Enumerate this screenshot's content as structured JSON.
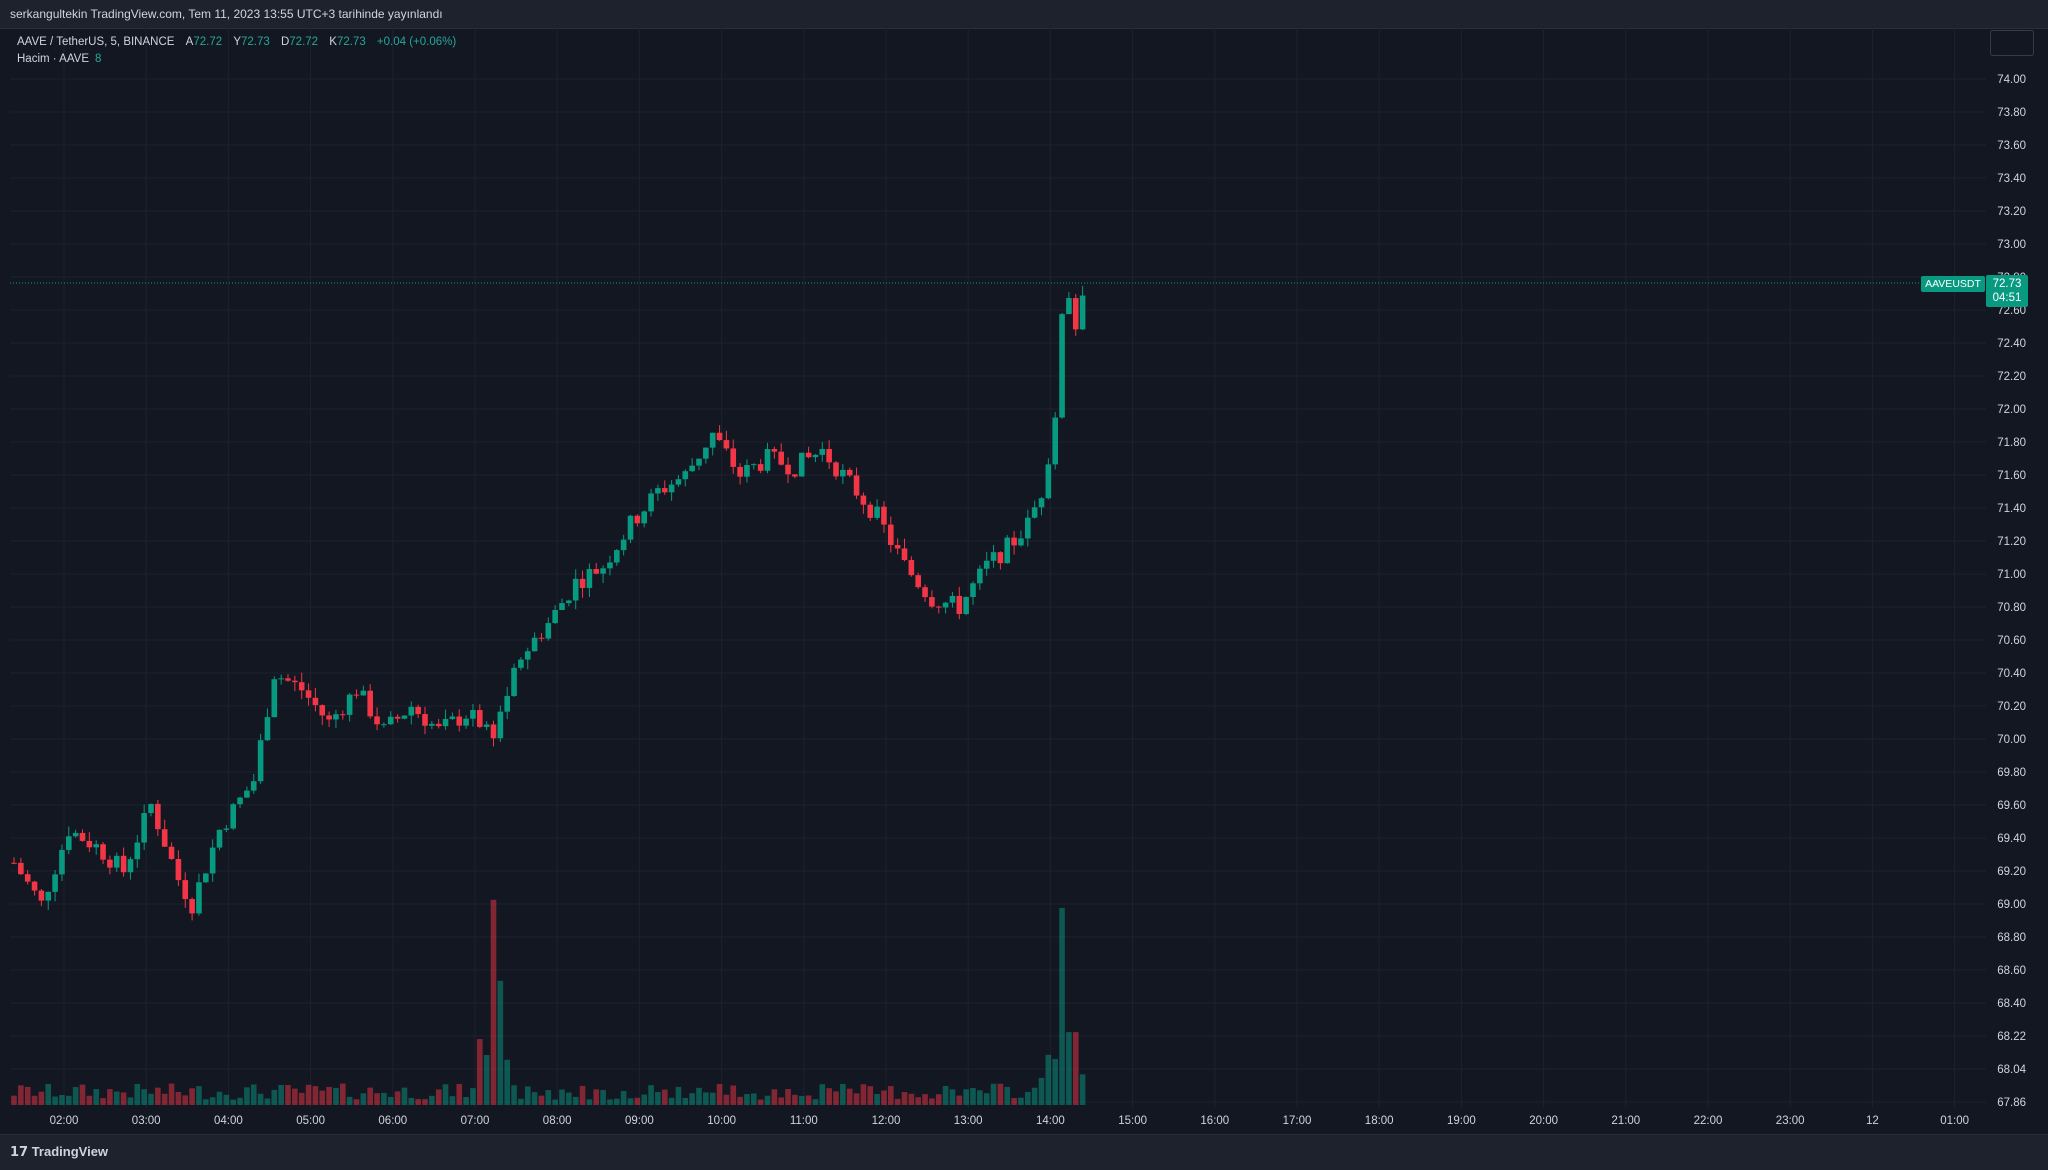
{
  "header": {
    "published": "serkangultekin TradingView.com, Tem 11, 2023 13:55 UTC+3 tarihinde yayınlandı"
  },
  "legend": {
    "symbol": "AAVE / TetherUS, 5, BINANCE",
    "open_label": "A",
    "open": "72.72",
    "high_label": "Y",
    "high": "72.73",
    "low_label": "D",
    "low": "72.72",
    "close_label": "K",
    "close": "72.73",
    "change": "+0.04 (+0.06%)",
    "volume_label": "Hacim · AAVE",
    "volume_value": "8"
  },
  "price_label": {
    "symbol": "AAVEUSDT",
    "price": "72.73",
    "countdown": "04:51"
  },
  "footer": {
    "logo": "TradingView"
  },
  "colors": {
    "up": "#089981",
    "down": "#f23645",
    "background": "#131722",
    "grid": "#1e222d",
    "axis_text": "#d1d4dc"
  },
  "chart_data": {
    "type": "candlestick",
    "interval": "5",
    "y_ticks": [
      "74.00",
      "73.80",
      "73.60",
      "73.40",
      "73.20",
      "73.00",
      "72.80",
      "72.60",
      "72.40",
      "72.20",
      "72.00",
      "71.80",
      "71.60",
      "71.40",
      "71.20",
      "71.00",
      "70.80",
      "70.60",
      "70.40",
      "70.20",
      "70.00",
      "69.80",
      "69.60",
      "69.40",
      "69.20",
      "69.00",
      "68.80",
      "68.60",
      "68.40",
      "68.22",
      "68.04",
      "67.86"
    ],
    "x_ticks": [
      "02:00",
      "03:00",
      "04:00",
      "05:00",
      "06:00",
      "07:00",
      "08:00",
      "09:00",
      "10:00",
      "11:00",
      "12:00",
      "13:00",
      "14:00",
      "15:00",
      "16:00",
      "17:00",
      "18:00",
      "19:00",
      "20:00",
      "21:00",
      "22:00",
      "23:00",
      "12",
      "01:00"
    ],
    "last_price": 72.73,
    "ylim": [
      67.86,
      74.0
    ]
  }
}
